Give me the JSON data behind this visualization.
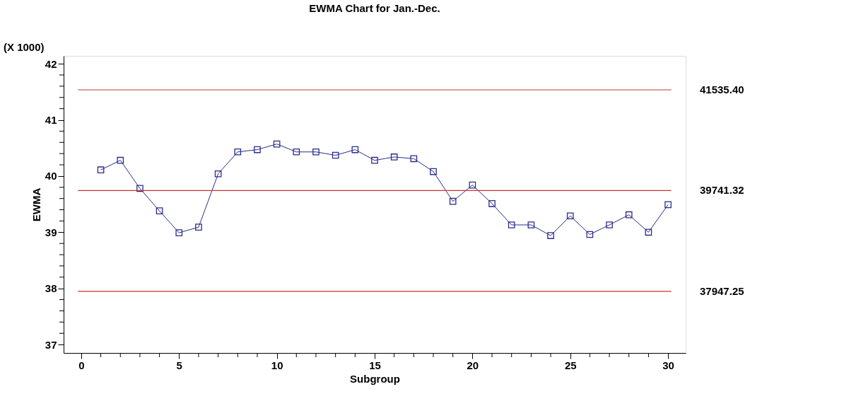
{
  "chart_data": {
    "type": "line",
    "title": "EWMA Chart for Jan.-Dec.",
    "xlabel": "Subgroup",
    "ylabel": "EWMA",
    "annotations": [
      "(X 1000)"
    ],
    "x": [
      1,
      2,
      3,
      4,
      5,
      6,
      7,
      8,
      9,
      10,
      11,
      12,
      13,
      14,
      15,
      16,
      17,
      18,
      19,
      20,
      21,
      22,
      23,
      24,
      25,
      26,
      27,
      28,
      29,
      30
    ],
    "series": [
      {
        "color": "#2b2b8c",
        "values": [
          40.11,
          40.28,
          39.78,
          39.38,
          38.99,
          39.09,
          40.04,
          40.43,
          40.47,
          40.57,
          40.43,
          40.43,
          40.37,
          40.47,
          40.28,
          40.34,
          40.31,
          40.08,
          39.55,
          39.84,
          39.51,
          39.13,
          39.13,
          38.94,
          39.29,
          38.96,
          39.13,
          39.31,
          39.0,
          39.49
        ]
      }
    ],
    "xlim": [
      -0.9,
      30.9
    ],
    "ylim": [
      36.85,
      42.14
    ],
    "xticks": [
      0,
      {
        "value": 1,
        "label": null
      },
      {
        "value": 2,
        "label": null
      },
      {
        "value": 3,
        "label": null
      },
      {
        "value": 4,
        "label": null
      },
      5,
      {
        "value": 6,
        "label": null
      },
      {
        "value": 7,
        "label": null
      },
      {
        "value": 8,
        "label": null
      },
      {
        "value": 9,
        "label": null
      },
      10,
      {
        "value": 11,
        "label": null
      },
      {
        "value": 12,
        "label": null
      },
      {
        "value": 13,
        "label": null
      },
      {
        "value": 14,
        "label": null
      },
      15,
      {
        "value": 16,
        "label": null
      },
      {
        "value": 17,
        "label": null
      },
      {
        "value": 18,
        "label": null
      },
      {
        "value": 19,
        "label": null
      },
      20,
      {
        "value": 21,
        "label": null
      },
      {
        "value": 22,
        "label": null
      },
      {
        "value": 23,
        "label": null
      },
      {
        "value": 24,
        "label": null
      },
      25,
      {
        "value": 26,
        "label": null
      },
      {
        "value": 27,
        "label": null
      },
      {
        "value": 28,
        "label": null
      },
      {
        "value": 29,
        "label": null
      },
      30
    ],
    "yticks": [
      37,
      {
        "value": 37.2,
        "label": null
      },
      {
        "value": 37.4,
        "label": null
      },
      {
        "value": 37.6,
        "label": null
      },
      {
        "value": 37.8,
        "label": null
      },
      38,
      {
        "value": 38.2,
        "label": null
      },
      {
        "value": 38.4,
        "label": null
      },
      {
        "value": 38.6,
        "label": null
      },
      {
        "value": 38.8,
        "label": null
      },
      39,
      {
        "value": 39.2,
        "label": null
      },
      {
        "value": 39.4,
        "label": null
      },
      {
        "value": 39.6,
        "label": null
      },
      {
        "value": 39.8,
        "label": null
      },
      40,
      {
        "value": 40.2,
        "label": null
      },
      {
        "value": 40.4,
        "label": null
      },
      {
        "value": 40.6,
        "label": null
      },
      {
        "value": 40.8,
        "label": null
      },
      41,
      {
        "value": 41.2,
        "label": null
      },
      {
        "value": 41.4,
        "label": null
      },
      {
        "value": 41.6,
        "label": null
      },
      {
        "value": 41.8,
        "label": null
      },
      42
    ],
    "ref_lines": [
      {
        "axis": "y",
        "value": 41.5354,
        "label": "41535.40",
        "color": "#cc3333"
      },
      {
        "axis": "y",
        "value": 39.74132,
        "label": "39741.32",
        "color": "#cc3333"
      },
      {
        "axis": "y",
        "value": 37.94725,
        "label": "37947.25",
        "color": "#cc3333"
      }
    ],
    "marker": "square",
    "line_style": "solid",
    "grid": false
  }
}
